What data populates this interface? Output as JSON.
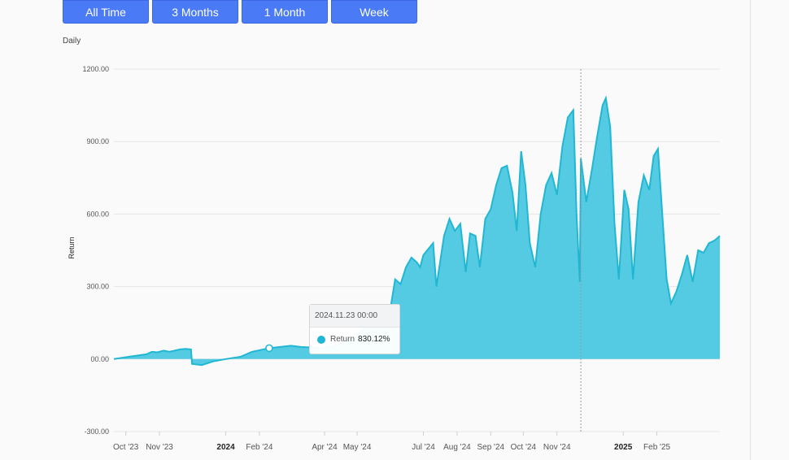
{
  "range_buttons": [
    {
      "label": "All Time"
    },
    {
      "label": "3 Months"
    },
    {
      "label": "1 Month"
    },
    {
      "label": "Week"
    }
  ],
  "colors": {
    "series_fill": "#4bc8e0",
    "series_line": "#21b7d3",
    "button": "#4a7af5"
  },
  "tooltip": {
    "date": "2024.11.23 00:00",
    "series": "Return",
    "value": "830.12%"
  },
  "chart_data": {
    "type": "area",
    "title": "Daily",
    "ylabel": "Return",
    "xlabel": "",
    "ylim": [
      -300,
      1200
    ],
    "grid": true,
    "yticks": [
      -300,
      0,
      300,
      600,
      900,
      1200
    ],
    "ytick_labels": [
      "-300.00",
      "00.00",
      "300.00",
      "600.00",
      "900.00",
      "1200.00"
    ],
    "xticks": [
      {
        "label": "Oct '23",
        "date": "2023-10-01",
        "bold": false
      },
      {
        "label": "Nov '23",
        "date": "2023-11-01",
        "bold": false
      },
      {
        "label": "2024",
        "date": "2024-01-01",
        "bold": true
      },
      {
        "label": "Feb '24",
        "date": "2024-02-01",
        "bold": false
      },
      {
        "label": "Apr '24",
        "date": "2024-04-01",
        "bold": false
      },
      {
        "label": "May '24",
        "date": "2024-05-01",
        "bold": false
      },
      {
        "label": "Jul '24",
        "date": "2024-07-01",
        "bold": false
      },
      {
        "label": "Aug '24",
        "date": "2024-08-01",
        "bold": false
      },
      {
        "label": "Sep '24",
        "date": "2024-09-01",
        "bold": false
      },
      {
        "label": "Oct '24",
        "date": "2024-10-01",
        "bold": false
      },
      {
        "label": "Nov '24",
        "date": "2024-11-01",
        "bold": false
      },
      {
        "label": "2025",
        "date": "2025-01-01",
        "bold": true
      },
      {
        "label": "Feb '25",
        "date": "2025-02-01",
        "bold": false
      }
    ],
    "crosshair_date": "2024-11-23",
    "marker_date": "2024-02-10",
    "series": [
      {
        "name": "Return",
        "points": [
          [
            "2023-09-20",
            0
          ],
          [
            "2023-10-05",
            10
          ],
          [
            "2023-10-20",
            20
          ],
          [
            "2023-10-25",
            30
          ],
          [
            "2023-10-30",
            28
          ],
          [
            "2023-11-05",
            35
          ],
          [
            "2023-11-10",
            30
          ],
          [
            "2023-11-20",
            40
          ],
          [
            "2023-11-25",
            42
          ],
          [
            "2023-11-30",
            40
          ],
          [
            "2023-12-01",
            -20
          ],
          [
            "2023-12-10",
            -25
          ],
          [
            "2023-12-20",
            -10
          ],
          [
            "2024-01-01",
            0
          ],
          [
            "2024-01-15",
            10
          ],
          [
            "2024-01-25",
            30
          ],
          [
            "2024-02-10",
            45
          ],
          [
            "2024-02-20",
            50
          ],
          [
            "2024-03-01",
            55
          ],
          [
            "2024-03-10",
            50
          ],
          [
            "2024-03-20",
            48
          ],
          [
            "2024-04-01",
            45
          ],
          [
            "2024-04-15",
            60
          ],
          [
            "2024-05-01",
            100
          ],
          [
            "2024-05-20",
            180
          ],
          [
            "2024-06-01",
            220
          ],
          [
            "2024-06-05",
            330
          ],
          [
            "2024-06-10",
            310
          ],
          [
            "2024-06-15",
            380
          ],
          [
            "2024-06-20",
            420
          ],
          [
            "2024-06-25",
            400
          ],
          [
            "2024-06-28",
            380
          ],
          [
            "2024-07-01",
            430
          ],
          [
            "2024-07-10",
            480
          ],
          [
            "2024-07-13",
            300
          ],
          [
            "2024-07-20",
            510
          ],
          [
            "2024-07-25",
            580
          ],
          [
            "2024-07-30",
            530
          ],
          [
            "2024-08-04",
            560
          ],
          [
            "2024-08-09",
            360
          ],
          [
            "2024-08-13",
            520
          ],
          [
            "2024-08-18",
            510
          ],
          [
            "2024-08-22",
            380
          ],
          [
            "2024-08-27",
            580
          ],
          [
            "2024-09-01",
            620
          ],
          [
            "2024-09-06",
            720
          ],
          [
            "2024-09-11",
            790
          ],
          [
            "2024-09-16",
            800
          ],
          [
            "2024-09-21",
            690
          ],
          [
            "2024-09-25",
            530
          ],
          [
            "2024-09-29",
            860
          ],
          [
            "2024-10-03",
            720
          ],
          [
            "2024-10-07",
            480
          ],
          [
            "2024-10-12",
            380
          ],
          [
            "2024-10-17",
            600
          ],
          [
            "2024-10-22",
            720
          ],
          [
            "2024-10-27",
            770
          ],
          [
            "2024-11-01",
            680
          ],
          [
            "2024-11-06",
            880
          ],
          [
            "2024-11-11",
            1000
          ],
          [
            "2024-11-16",
            1030
          ],
          [
            "2024-11-19",
            600
          ],
          [
            "2024-11-22",
            320
          ],
          [
            "2024-11-23",
            830
          ],
          [
            "2024-11-28",
            650
          ],
          [
            "2024-12-03",
            780
          ],
          [
            "2024-12-08",
            920
          ],
          [
            "2024-12-13",
            1050
          ],
          [
            "2024-12-16",
            1080
          ],
          [
            "2024-12-20",
            960
          ],
          [
            "2024-12-24",
            560
          ],
          [
            "2024-12-28",
            330
          ],
          [
            "2025-01-02",
            700
          ],
          [
            "2025-01-06",
            620
          ],
          [
            "2025-01-10",
            330
          ],
          [
            "2025-01-15",
            650
          ],
          [
            "2025-01-20",
            760
          ],
          [
            "2025-01-25",
            700
          ],
          [
            "2025-01-29",
            840
          ],
          [
            "2025-02-02",
            870
          ],
          [
            "2025-02-06",
            600
          ],
          [
            "2025-02-10",
            330
          ],
          [
            "2025-02-14",
            230
          ],
          [
            "2025-02-19",
            280
          ],
          [
            "2025-02-24",
            350
          ],
          [
            "2025-03-01",
            430
          ],
          [
            "2025-03-06",
            320
          ],
          [
            "2025-03-11",
            450
          ],
          [
            "2025-03-16",
            440
          ],
          [
            "2025-03-21",
            480
          ],
          [
            "2025-03-26",
            490
          ],
          [
            "2025-03-31",
            510
          ]
        ]
      }
    ]
  }
}
